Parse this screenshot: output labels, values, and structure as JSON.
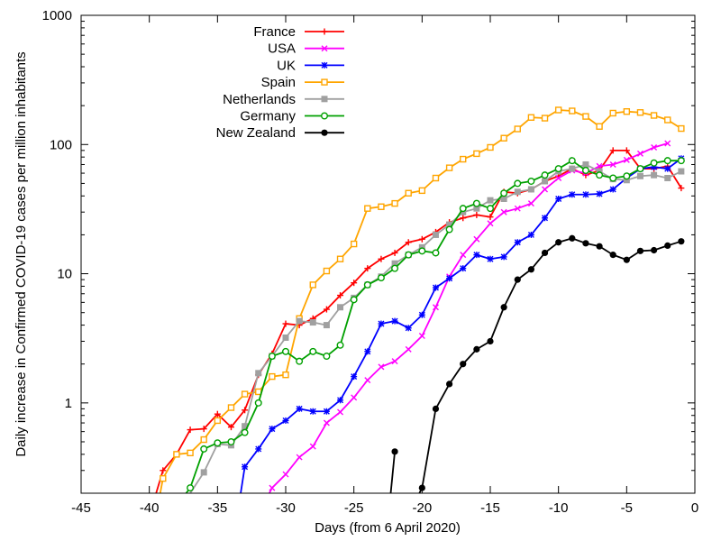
{
  "chart_data": {
    "type": "line",
    "xlabel": "Days (from 6 April 2020)",
    "ylabel": "Daily increase in Confirmed COVID-19 cases per million inhabitants",
    "xlim": [
      -45,
      0
    ],
    "ylim": [
      0.2,
      1000
    ],
    "y_scale": "log",
    "grid": false,
    "legend_position": "top-left",
    "x_ticks": [
      -45,
      -40,
      -35,
      -30,
      -25,
      -20,
      -15,
      -10,
      -5,
      0
    ],
    "x_tick_labels": [
      "-45",
      "-40",
      "-35",
      "-30",
      "-25",
      "-20",
      "-15",
      "-10",
      "-5",
      "0"
    ],
    "y_ticks": [
      1,
      10,
      100,
      1000
    ],
    "y_tick_labels": [
      "1",
      "10",
      "100",
      "1000"
    ],
    "series": [
      {
        "name": "France",
        "color": "#ff0000",
        "marker": "plus",
        "points": [
          [
            -39.5,
            0.2
          ],
          [
            -39,
            0.3
          ],
          [
            -38,
            0.4
          ],
          [
            -37,
            0.62
          ],
          [
            -36,
            0.63
          ],
          [
            -35,
            0.82
          ],
          [
            -34,
            0.65
          ],
          [
            -33,
            0.88
          ],
          [
            -32,
            1.65
          ],
          [
            -31,
            2.4
          ],
          [
            -30,
            4.1
          ],
          [
            -29,
            4.0
          ],
          [
            -28,
            4.5
          ],
          [
            -27,
            5.3
          ],
          [
            -26,
            6.8
          ],
          [
            -25,
            8.5
          ],
          [
            -24,
            11
          ],
          [
            -23,
            13
          ],
          [
            -22,
            14.5
          ],
          [
            -21,
            17.5
          ],
          [
            -20,
            18.5
          ],
          [
            -19,
            21
          ],
          [
            -18,
            25
          ],
          [
            -17,
            27
          ],
          [
            -16,
            28.5
          ],
          [
            -15,
            27.5
          ],
          [
            -14,
            43
          ],
          [
            -13,
            42
          ],
          [
            -12,
            45
          ],
          [
            -11,
            52
          ],
          [
            -10,
            57
          ],
          [
            -9,
            65
          ],
          [
            -8,
            58
          ],
          [
            -7,
            63
          ],
          [
            -6,
            90
          ],
          [
            -5,
            90
          ],
          [
            -4,
            65
          ],
          [
            -3,
            65
          ],
          [
            -2,
            68
          ],
          [
            -1,
            46
          ]
        ]
      },
      {
        "name": "USA",
        "color": "#ff00ff",
        "marker": "cross",
        "points": [
          [
            -31.2,
            0.2
          ],
          [
            -31,
            0.22
          ],
          [
            -30,
            0.28
          ],
          [
            -29,
            0.38
          ],
          [
            -28,
            0.46
          ],
          [
            -27,
            0.7
          ],
          [
            -26,
            0.85
          ],
          [
            -25,
            1.1
          ],
          [
            -24,
            1.5
          ],
          [
            -23,
            1.9
          ],
          [
            -22,
            2.1
          ],
          [
            -21,
            2.6
          ],
          [
            -20,
            3.3
          ],
          [
            -19,
            5.5
          ],
          [
            -18,
            9.5
          ],
          [
            -17,
            14
          ],
          [
            -16,
            18.5
          ],
          [
            -15,
            24.5
          ],
          [
            -14,
            30
          ],
          [
            -13,
            32
          ],
          [
            -12,
            35
          ],
          [
            -11,
            45
          ],
          [
            -10,
            55
          ],
          [
            -9,
            63
          ],
          [
            -8,
            60
          ],
          [
            -7,
            68
          ],
          [
            -6,
            70
          ],
          [
            -5,
            76
          ],
          [
            -4,
            85
          ],
          [
            -3,
            95
          ],
          [
            -2,
            102
          ]
        ]
      },
      {
        "name": "UK",
        "color": "#0000ff",
        "marker": "star",
        "points": [
          [
            -33.3,
            0.2
          ],
          [
            -33,
            0.32
          ],
          [
            -32,
            0.44
          ],
          [
            -31,
            0.63
          ],
          [
            -30,
            0.73
          ],
          [
            -29,
            0.9
          ],
          [
            -28,
            0.86
          ],
          [
            -27,
            0.86
          ],
          [
            -26,
            1.05
          ],
          [
            -25,
            1.6
          ],
          [
            -24,
            2.5
          ],
          [
            -23,
            4.1
          ],
          [
            -22,
            4.3
          ],
          [
            -21,
            3.8
          ],
          [
            -20,
            4.8
          ],
          [
            -19,
            7.8
          ],
          [
            -18,
            9.2
          ],
          [
            -17,
            11
          ],
          [
            -16,
            14
          ],
          [
            -15,
            13
          ],
          [
            -14,
            13.5
          ],
          [
            -13,
            17.5
          ],
          [
            -12,
            20
          ],
          [
            -11,
            27
          ],
          [
            -10,
            38
          ],
          [
            -9,
            41
          ],
          [
            -8,
            41
          ],
          [
            -7,
            41.5
          ],
          [
            -6,
            45
          ],
          [
            -5,
            55
          ],
          [
            -4,
            65
          ],
          [
            -3,
            67
          ],
          [
            -2,
            65
          ],
          [
            -1,
            78
          ]
        ]
      },
      {
        "name": "Spain",
        "color": "#ffa500",
        "marker": "square-open",
        "points": [
          [
            -39.2,
            0.2
          ],
          [
            -39,
            0.26
          ],
          [
            -38,
            0.4
          ],
          [
            -37,
            0.41
          ],
          [
            -36,
            0.52
          ],
          [
            -35,
            0.73
          ],
          [
            -34,
            0.92
          ],
          [
            -33,
            1.17
          ],
          [
            -32,
            1.22
          ],
          [
            -31,
            1.6
          ],
          [
            -30,
            1.65
          ],
          [
            -29,
            4.5
          ],
          [
            -28,
            8.2
          ],
          [
            -27,
            10.5
          ],
          [
            -26,
            13
          ],
          [
            -25,
            17
          ],
          [
            -24,
            32
          ],
          [
            -23,
            33
          ],
          [
            -22,
            35
          ],
          [
            -21,
            42
          ],
          [
            -20,
            44
          ],
          [
            -19,
            55
          ],
          [
            -18,
            66
          ],
          [
            -17,
            77
          ],
          [
            -16,
            85
          ],
          [
            -15,
            95
          ],
          [
            -14,
            112
          ],
          [
            -13,
            132
          ],
          [
            -12,
            162
          ],
          [
            -11,
            160
          ],
          [
            -10,
            185
          ],
          [
            -9,
            182
          ],
          [
            -8,
            165
          ],
          [
            -7,
            138
          ],
          [
            -6,
            175
          ],
          [
            -5,
            180
          ],
          [
            -4,
            177
          ],
          [
            -3,
            168
          ],
          [
            -2,
            155
          ],
          [
            -1,
            133
          ]
        ]
      },
      {
        "name": "Netherlands",
        "color": "#a0a0a0",
        "marker": "square-filled",
        "points": [
          [
            -37,
            0.2
          ],
          [
            -36,
            0.29
          ],
          [
            -35,
            0.48
          ],
          [
            -34,
            0.47
          ],
          [
            -33,
            0.66
          ],
          [
            -32,
            1.7
          ],
          [
            -31,
            2.3
          ],
          [
            -30,
            3.2
          ],
          [
            -29,
            4.3
          ],
          [
            -28,
            4.2
          ],
          [
            -27,
            4.0
          ],
          [
            -26,
            5.5
          ],
          [
            -25,
            6.5
          ],
          [
            -24,
            8.2
          ],
          [
            -23,
            9.5
          ],
          [
            -22,
            12
          ],
          [
            -21,
            14
          ],
          [
            -20,
            16
          ],
          [
            -19,
            20
          ],
          [
            -18,
            24
          ],
          [
            -17,
            30
          ],
          [
            -16,
            32
          ],
          [
            -15,
            37
          ],
          [
            -14,
            38
          ],
          [
            -13,
            43
          ],
          [
            -12,
            45
          ],
          [
            -11,
            52
          ],
          [
            -10,
            62
          ],
          [
            -9,
            65
          ],
          [
            -8,
            70
          ],
          [
            -7,
            62
          ],
          [
            -6,
            54
          ],
          [
            -5,
            53
          ],
          [
            -4,
            57
          ],
          [
            -3,
            58
          ],
          [
            -2,
            55
          ],
          [
            -1,
            62
          ]
        ]
      },
      {
        "name": "Germany",
        "color": "#00a000",
        "marker": "circle-open",
        "points": [
          [
            -37.3,
            0.2
          ],
          [
            -37,
            0.22
          ],
          [
            -36,
            0.44
          ],
          [
            -35,
            0.49
          ],
          [
            -34,
            0.5
          ],
          [
            -33,
            0.59
          ],
          [
            -32,
            1.0
          ],
          [
            -31,
            2.3
          ],
          [
            -30,
            2.5
          ],
          [
            -29,
            2.1
          ],
          [
            -28,
            2.5
          ],
          [
            -27,
            2.3
          ],
          [
            -26,
            2.8
          ],
          [
            -25,
            6.3
          ],
          [
            -24,
            8.2
          ],
          [
            -23,
            9.3
          ],
          [
            -22,
            11
          ],
          [
            -21,
            14
          ],
          [
            -20,
            15
          ],
          [
            -19,
            14.5
          ],
          [
            -18,
            22
          ],
          [
            -17,
            32
          ],
          [
            -16,
            35
          ],
          [
            -15,
            32
          ],
          [
            -14,
            42
          ],
          [
            -13,
            50
          ],
          [
            -12,
            52
          ],
          [
            -11,
            58
          ],
          [
            -10,
            65
          ],
          [
            -9,
            75
          ],
          [
            -8,
            63
          ],
          [
            -7,
            58
          ],
          [
            -6,
            55
          ],
          [
            -5,
            57
          ],
          [
            -4,
            65
          ],
          [
            -3,
            72
          ],
          [
            -2,
            75
          ],
          [
            -1,
            75
          ]
        ]
      },
      {
        "name": "New Zealand",
        "color": "#000000",
        "marker": "circle-filled",
        "segments": [
          [
            [
              -22.3,
              0.2
            ],
            [
              -22,
              0.42
            ]
          ],
          [
            [
              -20.2,
              0.2
            ],
            [
              -20,
              0.22
            ],
            [
              -19,
              0.9
            ],
            [
              -18,
              1.4
            ],
            [
              -17,
              2.0
            ],
            [
              -16,
              2.6
            ],
            [
              -15,
              3.0
            ],
            [
              -14,
              5.5
            ],
            [
              -13,
              9.0
            ],
            [
              -12,
              10.8
            ],
            [
              -11,
              14.5
            ],
            [
              -10,
              17.5
            ],
            [
              -9,
              18.8
            ],
            [
              -8,
              17.2
            ],
            [
              -7,
              16.3
            ],
            [
              -6,
              14
            ],
            [
              -5,
              12.8
            ],
            [
              -4,
              15
            ],
            [
              -3,
              15.2
            ],
            [
              -2,
              16.5
            ],
            [
              -1,
              17.8
            ]
          ]
        ]
      }
    ]
  }
}
